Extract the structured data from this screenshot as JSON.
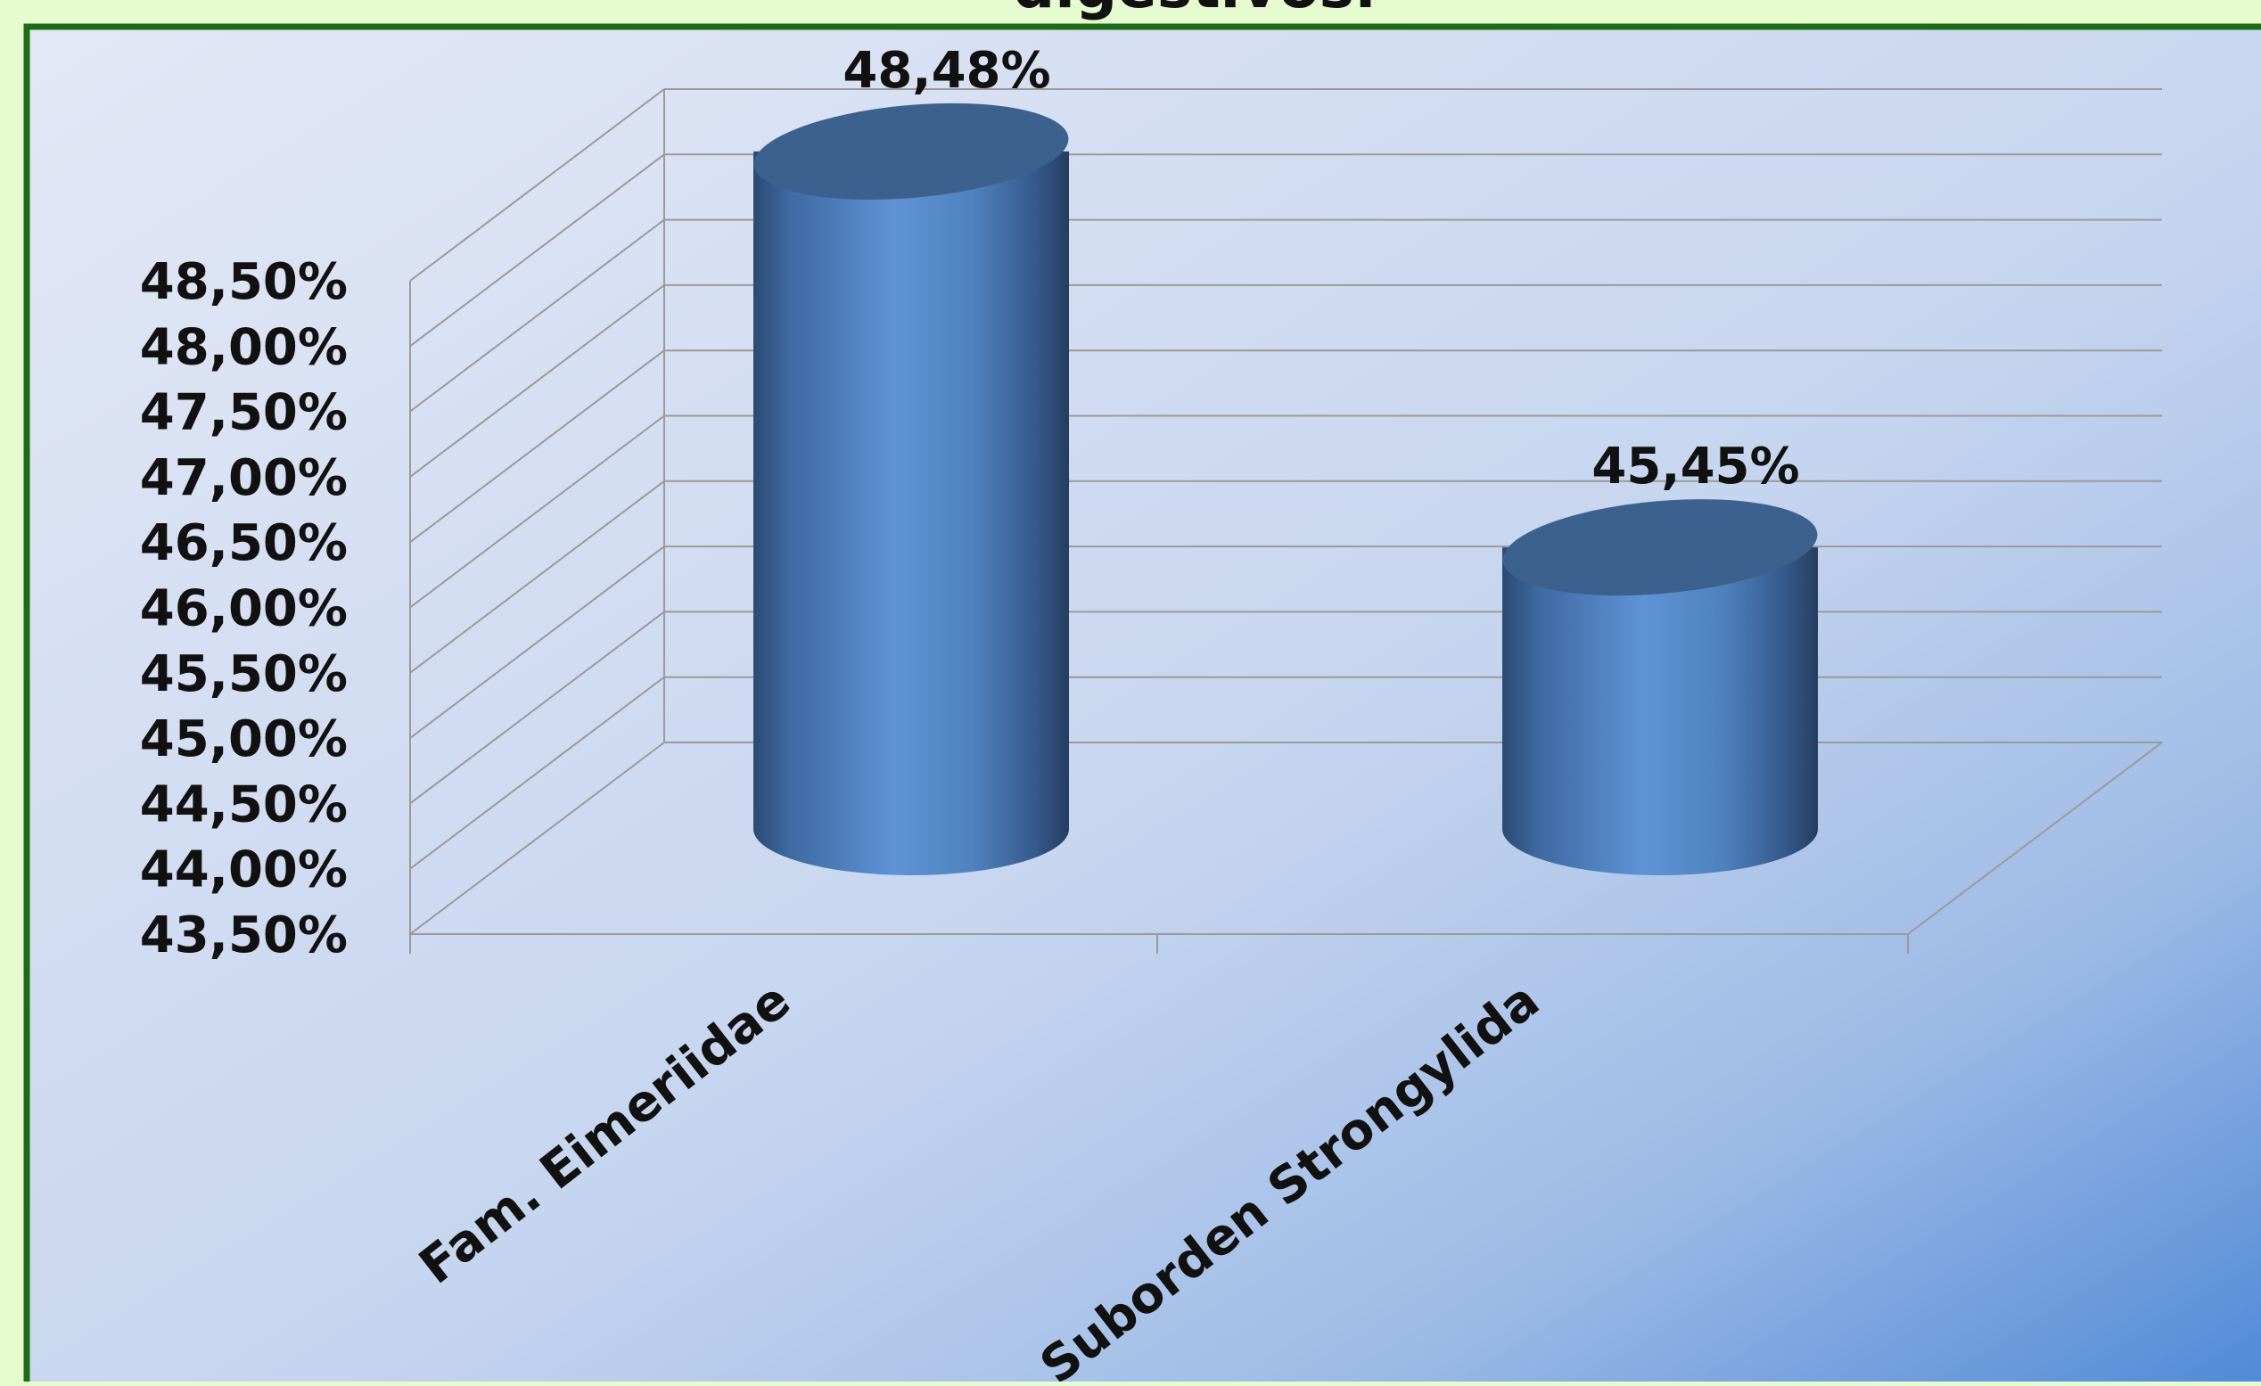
{
  "chart_data": {
    "type": "bar",
    "title": "digestivos.",
    "categories": [
      "Fam. Eimeriidae",
      "Suborden Strongylida"
    ],
    "values": [
      48.48,
      45.45
    ],
    "data_labels": [
      "48,48%",
      "45,45%"
    ],
    "y_tick_labels": [
      "43,50%",
      "44,00%",
      "44,50%",
      "45,00%",
      "45,50%",
      "46,00%",
      "46,50%",
      "47,00%",
      "47,50%",
      "48,00%",
      "48,50%"
    ],
    "ylim": [
      43.5,
      48.5
    ],
    "y_tick_step": 0.5,
    "grid": true,
    "legend": "none",
    "style": "3d-cylinder",
    "colors": {
      "bar": "#4f81bd",
      "bar_dark": "#2c4a72",
      "bar_light": "#5f93d6",
      "bar_top": "#3d618f",
      "frame_border": "#1e6b16",
      "page_background": "#e6fbd0",
      "gridline": "#9a9a9a"
    }
  }
}
